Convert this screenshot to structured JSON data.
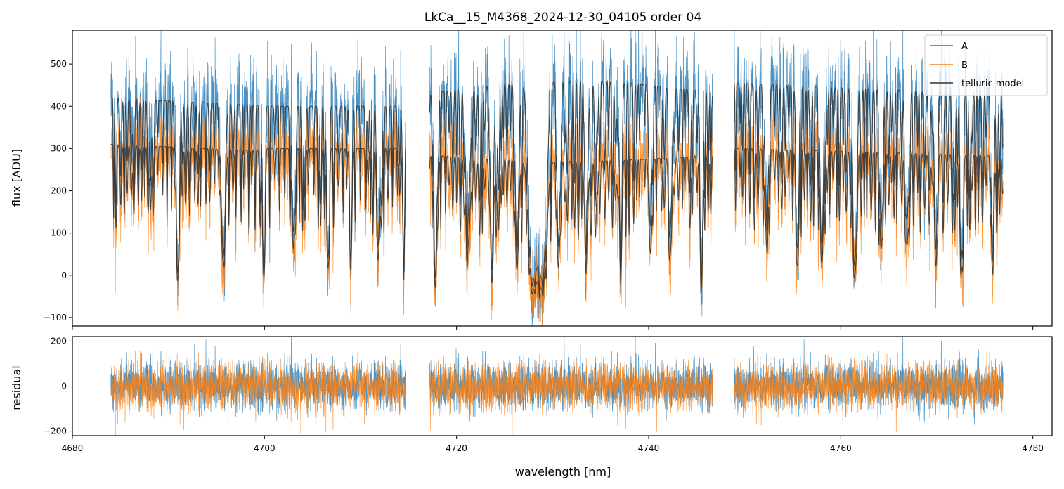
{
  "chart_data": {
    "type": "line",
    "title": "LkCa__15_M4368_2024-12-30_04105  order 04",
    "xlabel": "wavelength [nm]",
    "xlim": [
      4680,
      4782
    ],
    "x_ticks": [
      "4680",
      "4700",
      "4720",
      "4740",
      "4760",
      "4780"
    ],
    "x_tick_values": [
      4680,
      4700,
      4720,
      4740,
      4760,
      4780
    ],
    "segments": [
      [
        4684.0,
        4714.7
      ],
      [
        4717.2,
        4746.7
      ],
      [
        4748.9,
        4776.9
      ]
    ],
    "panels": [
      {
        "name": "flux",
        "ylabel": "flux [ADU]",
        "ylim": [
          -120,
          580
        ],
        "y_ticks": [
          "−100",
          "0",
          "100",
          "200",
          "300",
          "400",
          "500"
        ],
        "y_tick_values": [
          -100,
          0,
          100,
          200,
          300,
          400,
          500
        ],
        "legend": {
          "position": "top-right",
          "entries": [
            "A",
            "B",
            "telluric model"
          ]
        },
        "series": [
          {
            "name": "A",
            "color": "#1f77b4",
            "kind": "noisy-spectrum",
            "note": "continuum ~400-470 ADU with deep telluric absorption lines"
          },
          {
            "name": "B",
            "color": "#ff7f0e",
            "kind": "noisy-spectrum",
            "note": "continuum ~270-300 ADU with deep telluric absorption lines"
          },
          {
            "name": "telluric model",
            "color": "#333333",
            "kind": "smooth-model",
            "note": "one curve per spectrum, continuum ~420 and ~300 ADU, troughs near -80 ADU"
          }
        ]
      },
      {
        "name": "residual",
        "ylabel": "residual",
        "ylim": [
          -220,
          220
        ],
        "y_ticks": [
          "−200",
          "0",
          "200"
        ],
        "y_tick_values": [
          -200,
          0,
          200
        ],
        "zero_line": true,
        "series": [
          {
            "name": "A",
            "color": "#1f77b4",
            "kind": "noise",
            "note": "residual scatter about ±100"
          },
          {
            "name": "B",
            "color": "#ff7f0e",
            "kind": "noise",
            "note": "residual scatter about ±90"
          }
        ]
      }
    ],
    "colors": {
      "A": "#1f77b4",
      "B": "#ff7f0e",
      "model": "#333333",
      "zero": "#555555"
    }
  }
}
